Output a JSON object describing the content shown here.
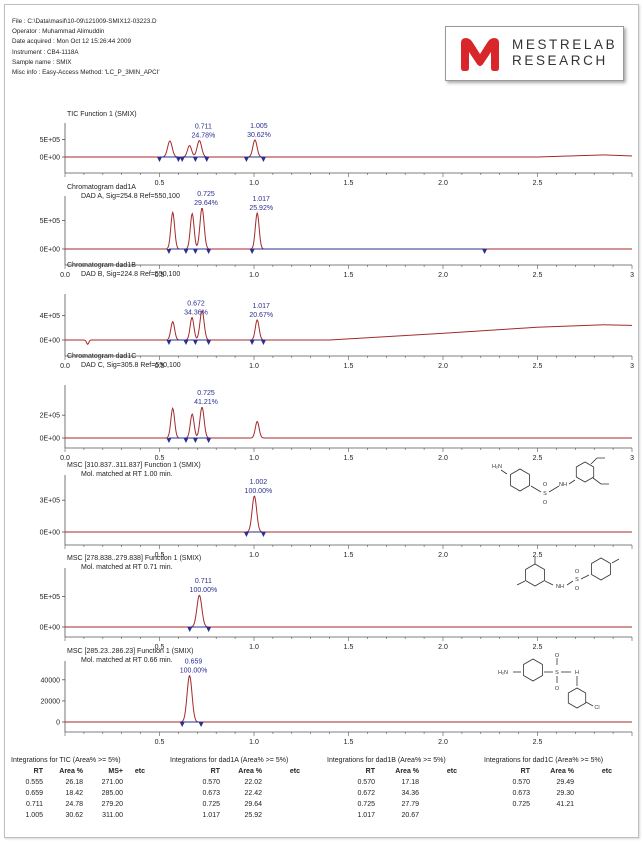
{
  "file_info": [
    "File : C:\\Data\\masif\\10-09\\121009-SMIX12-03223.D",
    "Operator : Muhammad Alimuddin",
    "Date acquired : Mon Oct 12 15:26:44 2009",
    "Instrument : CB4-1118A",
    "Sample name : SMIX",
    "Misc info : Easy-Access Method: 'LC_P_3MIN_APCI'"
  ],
  "logo": {
    "line1": "MESTRELAB",
    "line2": "RESEARCH",
    "color": "#d9262b"
  },
  "colors": {
    "trace": "#a52a2a",
    "baseline": "#2b2f8f",
    "label": "#2b2f8f",
    "axis": "#555555",
    "grid": "#999999"
  },
  "chart_data": [
    {
      "type": "line",
      "title": "TIC Function 1 (SMIX)",
      "subtitle": "",
      "xlim": [
        0,
        3
      ],
      "x_ticks": [
        "0.5",
        "1.0",
        "1.5",
        "2.0",
        "2.5"
      ],
      "y_ticks": [
        "0E+00",
        "5E+05"
      ],
      "y_tick_values": [
        0,
        500000
      ],
      "ylim": [
        -60000,
        860000
      ],
      "peaks": [
        {
          "rt": 0.555,
          "height": 460000,
          "width": 0.012
        },
        {
          "rt": 0.659,
          "height": 330000,
          "width": 0.011
        },
        {
          "rt": 0.711,
          "height": 470000,
          "width": 0.012
        },
        {
          "rt": 1.005,
          "height": 490000,
          "width": 0.011
        }
      ],
      "drift": [
        [
          0,
          0
        ],
        [
          2.5,
          0
        ],
        [
          2.85,
          60000
        ],
        [
          3,
          30000
        ]
      ],
      "peak_labels": [
        {
          "rt": 0.711,
          "lines": [
            "0.711",
            "24.78%"
          ]
        },
        {
          "rt": 1.005,
          "lines": [
            "1.005",
            "30.62%"
          ]
        }
      ],
      "baseline_segments": [
        [
          0.5,
          0.6
        ],
        [
          0.62,
          0.69
        ],
        [
          0.69,
          0.75
        ],
        [
          0.96,
          1.05
        ]
      ],
      "markers": [
        0.5,
        0.6,
        0.62,
        0.69,
        0.75,
        0.96,
        1.05
      ],
      "show_x_tick_labels": false,
      "structure": false
    },
    {
      "type": "line",
      "title": "Chromatogram dad1A",
      "subtitle": "DAD A, Sig=254.8 Ref=550,100",
      "xlim": [
        0,
        3
      ],
      "x_ticks": [
        "0.0",
        "0.5",
        "1.0",
        "1.5",
        "2.0",
        "2.5",
        "3"
      ],
      "y_ticks": [
        "0E+00",
        "5E+05"
      ],
      "y_tick_values": [
        0,
        500000
      ],
      "ylim": [
        -60000,
        860000
      ],
      "peaks": [
        {
          "rt": 0.57,
          "height": 640000,
          "width": 0.01
        },
        {
          "rt": 0.673,
          "height": 620000,
          "width": 0.01
        },
        {
          "rt": 0.725,
          "height": 720000,
          "width": 0.011
        },
        {
          "rt": 1.017,
          "height": 630000,
          "width": 0.01
        }
      ],
      "drift": [
        [
          0,
          0
        ],
        [
          3,
          0
        ]
      ],
      "peak_labels": [
        {
          "rt": 0.725,
          "lines": [
            "0.725",
            "29.64%"
          ]
        },
        {
          "rt": 1.017,
          "lines": [
            "1.017",
            "25.92%"
          ]
        }
      ],
      "baseline_segments": [
        [
          0.55,
          0.64
        ],
        [
          0.64,
          0.69
        ],
        [
          0.69,
          0.76
        ],
        [
          0.99,
          2.22
        ]
      ],
      "markers": [
        0.55,
        0.64,
        0.69,
        0.76,
        0.99,
        2.22
      ],
      "show_x_tick_labels": true,
      "structure": false
    },
    {
      "type": "line",
      "title": "Chromatogram dad1B",
      "subtitle": "DAD B, Sig=224.8 Ref=550,100",
      "xlim": [
        0,
        3
      ],
      "x_ticks": [
        "0.0",
        "0.5",
        "1.0",
        "1.5",
        "2.0",
        "2.5",
        "3"
      ],
      "y_ticks": [
        "0E+00",
        "4E+05"
      ],
      "y_tick_values": [
        0,
        400000
      ],
      "ylim": [
        -60000,
        690000
      ],
      "peaks": [
        {
          "rt": 0.57,
          "height": 300000,
          "width": 0.01
        },
        {
          "rt": 0.672,
          "height": 370000,
          "width": 0.01
        },
        {
          "rt": 0.725,
          "height": 480000,
          "width": 0.011
        },
        {
          "rt": 1.017,
          "height": 330000,
          "width": 0.01
        }
      ],
      "drift": [
        [
          0,
          0
        ],
        [
          1.4,
          0
        ],
        [
          2.0,
          110000
        ],
        [
          2.5,
          210000
        ],
        [
          2.85,
          250000
        ],
        [
          3,
          240000
        ]
      ],
      "dips": [
        {
          "rt": 0.12,
          "depth": -70000,
          "width": 0.006
        }
      ],
      "peak_labels": [
        {
          "rt": 0.672,
          "lines": [
            "0.672",
            "34.36%"
          ]
        },
        {
          "rt": 1.017,
          "lines": [
            "1.017",
            "20.67%"
          ]
        }
      ],
      "baseline_segments": [
        [
          0.55,
          0.64
        ],
        [
          0.64,
          0.69
        ],
        [
          0.69,
          0.76
        ],
        [
          0.99,
          1.05
        ]
      ],
      "markers": [
        0.55,
        0.64,
        0.69,
        0.76,
        0.99,
        1.05
      ],
      "show_x_tick_labels": true,
      "structure": false
    },
    {
      "type": "line",
      "title": "Chromatogram dad1C",
      "subtitle": "DAD C, Sig=305.8 Ref=550,100",
      "xlim": [
        0,
        3
      ],
      "x_ticks": [
        "0.0",
        "0.5",
        "1.0",
        "1.5",
        "2.0",
        "2.5",
        "3"
      ],
      "y_ticks": [
        "0E+00",
        "2E+05"
      ],
      "y_tick_values": [
        0,
        200000
      ],
      "ylim": [
        -30000,
        430000
      ],
      "peaks": [
        {
          "rt": 0.57,
          "height": 260000,
          "width": 0.01
        },
        {
          "rt": 0.673,
          "height": 210000,
          "width": 0.01
        },
        {
          "rt": 0.725,
          "height": 270000,
          "width": 0.011
        },
        {
          "rt": 1.017,
          "height": 145000,
          "width": 0.01
        }
      ],
      "drift": [
        [
          0,
          0
        ],
        [
          3,
          0
        ]
      ],
      "peak_labels": [
        {
          "rt": 0.725,
          "lines": [
            "0.725",
            "41.21%"
          ]
        }
      ],
      "baseline_segments": [
        [
          0.55,
          0.64
        ],
        [
          0.64,
          0.69
        ],
        [
          0.69,
          0.76
        ]
      ],
      "markers": [
        0.55,
        0.64,
        0.69,
        0.76
      ],
      "show_x_tick_labels": true,
      "structure": false
    },
    {
      "type": "line",
      "title": "MSC [310.837..311.837] Function 1 (SMIX)",
      "subtitle": "Mol. matched at RT 1.00 min.",
      "xlim": [
        0,
        3
      ],
      "x_ticks": [
        "0.5",
        "1.0",
        "1.5",
        "2.0",
        "2.5"
      ],
      "y_ticks": [
        "0E+00",
        "3E+05"
      ],
      "y_tick_values": [
        0,
        300000
      ],
      "ylim": [
        -40000,
        500000
      ],
      "peaks": [
        {
          "rt": 1.002,
          "height": 340000,
          "width": 0.012
        }
      ],
      "drift": [
        [
          0,
          0
        ],
        [
          3,
          0
        ]
      ],
      "peak_labels": [
        {
          "rt": 1.002,
          "lines": [
            "1.002",
            "100.00%"
          ]
        }
      ],
      "baseline_segments": [
        [
          0.96,
          1.05
        ]
      ],
      "markers": [
        0.96,
        1.05
      ],
      "show_x_tick_labels": false,
      "structure": "sulfadimethoxine"
    },
    {
      "type": "line",
      "title": "MSC [278.838..279.838] Function 1 (SMIX)",
      "subtitle": "Mol. matched at RT 0.71 min.",
      "xlim": [
        0,
        3
      ],
      "x_ticks": [
        "0.5",
        "1.0",
        "1.5",
        "2.0",
        "2.5"
      ],
      "y_ticks": [
        "0E+00",
        "5E+05"
      ],
      "y_tick_values": [
        0,
        500000
      ],
      "ylim": [
        -60000,
        900000
      ],
      "peaks": [
        {
          "rt": 0.711,
          "height": 520000,
          "width": 0.013
        }
      ],
      "drift": [
        [
          0,
          0
        ],
        [
          3,
          0
        ]
      ],
      "peak_labels": [
        {
          "rt": 0.711,
          "lines": [
            "0.711",
            "100.00%"
          ]
        }
      ],
      "baseline_segments": [
        [
          0.66,
          0.76
        ]
      ],
      "markers": [
        0.66,
        0.76
      ],
      "show_x_tick_labels": false,
      "structure": "sulfamethazine"
    },
    {
      "type": "line",
      "title": "MSC [285.23..286.23] Function 1 (SMIX)",
      "subtitle": "Mol. matched at RT 0.66 min.",
      "xlim": [
        0,
        3
      ],
      "x_ticks": [
        "0.5",
        "1.0",
        "1.5",
        "2.0",
        "2.5"
      ],
      "y_ticks": [
        "0",
        "20000",
        "40000"
      ],
      "y_tick_values": [
        0,
        20000,
        40000
      ],
      "ylim": [
        -6000,
        54000
      ],
      "peaks": [
        {
          "rt": 0.659,
          "height": 44000,
          "width": 0.013
        }
      ],
      "drift": [
        [
          0,
          0
        ],
        [
          3,
          0
        ]
      ],
      "peak_labels": [
        {
          "rt": 0.659,
          "lines": [
            "0.659",
            "100.00%"
          ]
        }
      ],
      "baseline_segments": [
        [
          0.62,
          0.72
        ]
      ],
      "markers": [
        0.62,
        0.72
      ],
      "show_x_tick_labels": true,
      "structure": "sulfachloropyridazine"
    }
  ],
  "tables": [
    {
      "title": "Integrations for TIC (Area% >= 5%)",
      "columns": [
        "RT",
        "Area %",
        "MS+",
        "etc"
      ],
      "rows": [
        [
          "0.555",
          "26.18",
          "271.00",
          ""
        ],
        [
          "0.659",
          "18.42",
          "285.00",
          ""
        ],
        [
          "0.711",
          "24.78",
          "279.20",
          ""
        ],
        [
          "1.005",
          "30.62",
          "311.00",
          ""
        ]
      ]
    },
    {
      "title": "Integrations for dad1A (Area% >= 5%)",
      "columns": [
        "RT",
        "Area %",
        "etc"
      ],
      "rows": [
        [
          "0.570",
          "22.02",
          ""
        ],
        [
          "0.673",
          "22.42",
          ""
        ],
        [
          "0.725",
          "29.64",
          ""
        ],
        [
          "1.017",
          "25.92",
          ""
        ]
      ]
    },
    {
      "title": "Integrations for dad1B (Area% >= 5%)",
      "columns": [
        "RT",
        "Area %",
        "etc"
      ],
      "rows": [
        [
          "0.570",
          "17.18",
          ""
        ],
        [
          "0.672",
          "34.36",
          ""
        ],
        [
          "0.725",
          "27.79",
          ""
        ],
        [
          "1.017",
          "20.67",
          ""
        ]
      ]
    },
    {
      "title": "Integrations for dad1C (Area% >= 5%)",
      "columns": [
        "RT",
        "Area %",
        "etc"
      ],
      "rows": [
        [
          "0.570",
          "29.49",
          ""
        ],
        [
          "0.673",
          "29.30",
          ""
        ],
        [
          "0.725",
          "41.21",
          ""
        ]
      ]
    }
  ]
}
